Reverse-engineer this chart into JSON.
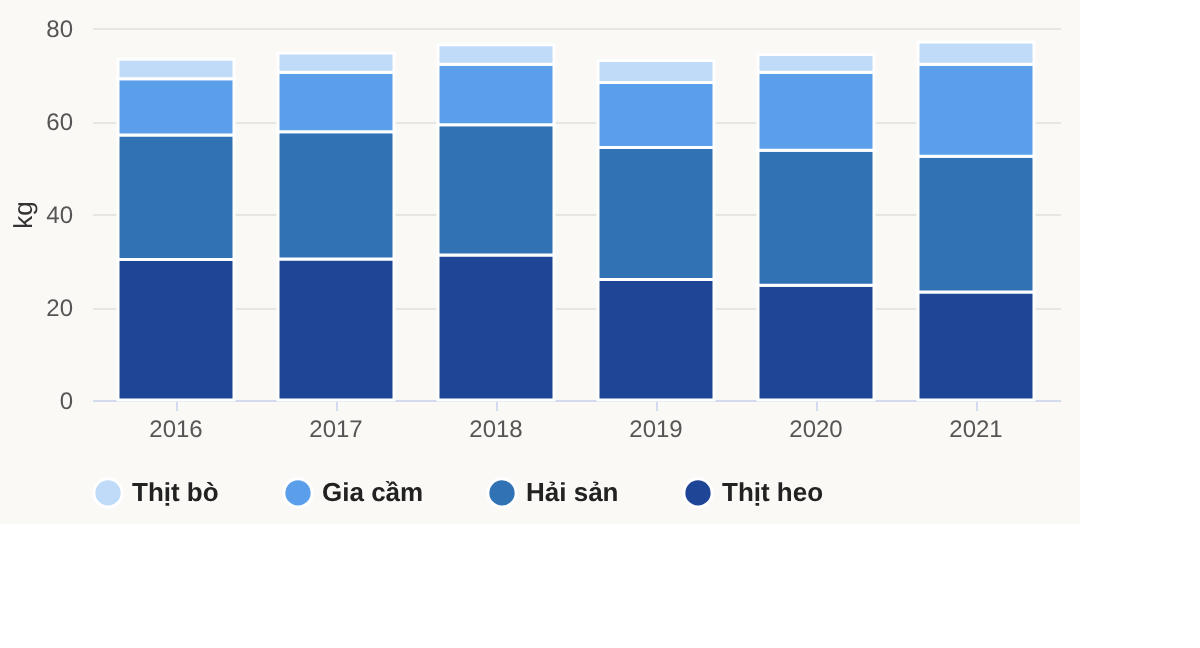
{
  "chart_data": {
    "type": "bar",
    "stacked": true,
    "ylabel": "kg",
    "categories": [
      "2016",
      "2017",
      "2018",
      "2019",
      "2020",
      "2021"
    ],
    "series": [
      {
        "name": "Thịt heo",
        "color": "#1f4597",
        "values": [
          30.2,
          30.3,
          31.2,
          25.9,
          24.7,
          23.2
        ]
      },
      {
        "name": "Hải sản",
        "color": "#3172b5",
        "values": [
          26.8,
          27.4,
          28.0,
          28.4,
          29.0,
          29.2
        ]
      },
      {
        "name": "Gia cầm",
        "color": "#5b9fea",
        "values": [
          12.1,
          12.8,
          13.0,
          14.0,
          16.8,
          19.8
        ]
      },
      {
        "name": "Thịt bò",
        "color": "#bfdbf7",
        "values": [
          4.2,
          4.1,
          4.2,
          4.7,
          3.8,
          4.8
        ]
      }
    ],
    "ylim": [
      0,
      80
    ],
    "yticks": [
      0,
      20,
      40,
      60,
      80
    ],
    "grid": "y",
    "legend": "bottom"
  }
}
